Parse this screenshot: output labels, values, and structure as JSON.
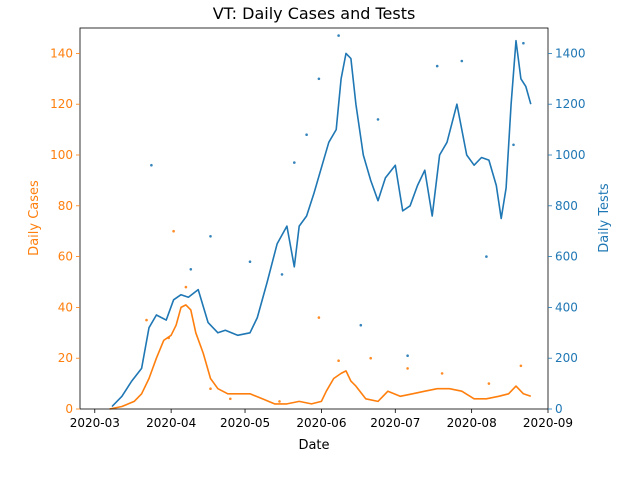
{
  "chart_data": {
    "type": "line",
    "title": "VT: Daily Cases and Tests",
    "xlabel": "Date",
    "ylabel_left": "Daily Cases",
    "ylabel_right": "Daily Tests",
    "xlim": [
      "2020-02-24",
      "2020-09-01"
    ],
    "ylim_left": [
      0,
      150
    ],
    "ylim_right": [
      0,
      1500
    ],
    "x_ticks": [
      "2020-03",
      "2020-04",
      "2020-05",
      "2020-06",
      "2020-07",
      "2020-08",
      "2020-09"
    ],
    "y_ticks_left": [
      0,
      20,
      40,
      60,
      80,
      100,
      120,
      140
    ],
    "y_ticks_right": [
      0,
      200,
      400,
      600,
      800,
      1000,
      1200,
      1400
    ],
    "colors": {
      "cases": "#ff7f0e",
      "tests": "#1f77b4"
    },
    "series": [
      {
        "axis": "left",
        "style": "line",
        "x": [
          "2020-03-07",
          "2020-03-12",
          "2020-03-17",
          "2020-03-20",
          "2020-03-23",
          "2020-03-26",
          "2020-03-29",
          "2020-04-01",
          "2020-04-03",
          "2020-04-05",
          "2020-04-07",
          "2020-04-09",
          "2020-04-11",
          "2020-04-14",
          "2020-04-17",
          "2020-04-20",
          "2020-04-24",
          "2020-04-28",
          "2020-05-03",
          "2020-05-08",
          "2020-05-13",
          "2020-05-18",
          "2020-05-23",
          "2020-05-28",
          "2020-06-01",
          "2020-06-03",
          "2020-06-06",
          "2020-06-09",
          "2020-06-11",
          "2020-06-13",
          "2020-06-15",
          "2020-06-19",
          "2020-06-24",
          "2020-06-28",
          "2020-07-03",
          "2020-07-08",
          "2020-07-13",
          "2020-07-18",
          "2020-07-23",
          "2020-07-28",
          "2020-08-02",
          "2020-08-07",
          "2020-08-12",
          "2020-08-16",
          "2020-08-19",
          "2020-08-22",
          "2020-08-25"
        ],
        "values": [
          0,
          1,
          3,
          6,
          12,
          20,
          27,
          29,
          33,
          40,
          41,
          39,
          30,
          22,
          12,
          8,
          6,
          6,
          6,
          4,
          2,
          2,
          3,
          2,
          3,
          7,
          12,
          14,
          15,
          11,
          9,
          4,
          3,
          7,
          5,
          6,
          7,
          8,
          8,
          7,
          4,
          4,
          5,
          6,
          9,
          6,
          5
        ]
      },
      {
        "axis": "right",
        "style": "line",
        "x": [
          "2020-03-08",
          "2020-03-12",
          "2020-03-16",
          "2020-03-20",
          "2020-03-23",
          "2020-03-26",
          "2020-03-30",
          "2020-04-02",
          "2020-04-05",
          "2020-04-08",
          "2020-04-12",
          "2020-04-16",
          "2020-04-20",
          "2020-04-23",
          "2020-04-28",
          "2020-05-03",
          "2020-05-06",
          "2020-05-10",
          "2020-05-14",
          "2020-05-18",
          "2020-05-21",
          "2020-05-23",
          "2020-05-26",
          "2020-05-29",
          "2020-06-01",
          "2020-06-04",
          "2020-06-07",
          "2020-06-09",
          "2020-06-11",
          "2020-06-13",
          "2020-06-15",
          "2020-06-18",
          "2020-06-21",
          "2020-06-24",
          "2020-06-27",
          "2020-07-01",
          "2020-07-04",
          "2020-07-07",
          "2020-07-10",
          "2020-07-13",
          "2020-07-16",
          "2020-07-19",
          "2020-07-22",
          "2020-07-26",
          "2020-07-30",
          "2020-08-02",
          "2020-08-05",
          "2020-08-08",
          "2020-08-11",
          "2020-08-13",
          "2020-08-15",
          "2020-08-17",
          "2020-08-19",
          "2020-08-21",
          "2020-08-23",
          "2020-08-25"
        ],
        "values": [
          10,
          50,
          110,
          160,
          320,
          370,
          350,
          430,
          450,
          440,
          470,
          340,
          300,
          310,
          290,
          300,
          360,
          500,
          650,
          720,
          560,
          720,
          760,
          850,
          950,
          1050,
          1100,
          1300,
          1400,
          1380,
          1200,
          1000,
          900,
          820,
          910,
          960,
          780,
          800,
          880,
          940,
          760,
          1000,
          1050,
          1200,
          1000,
          960,
          990,
          980,
          880,
          750,
          870,
          1200,
          1450,
          1300,
          1270,
          1200
        ]
      },
      {
        "axis": "left",
        "style": "scatter",
        "x": [
          "2020-03-22",
          "2020-03-31",
          "2020-04-02",
          "2020-04-07",
          "2020-04-17",
          "2020-04-25",
          "2020-05-15",
          "2020-05-31",
          "2020-06-08",
          "2020-06-21",
          "2020-07-06",
          "2020-07-20",
          "2020-08-08",
          "2020-08-21"
        ],
        "values": [
          35,
          28,
          70,
          48,
          8,
          4,
          3,
          36,
          19,
          20,
          16,
          14,
          10,
          17
        ]
      },
      {
        "axis": "right",
        "style": "scatter",
        "x": [
          "2020-03-24",
          "2020-04-09",
          "2020-04-17",
          "2020-05-03",
          "2020-05-16",
          "2020-05-21",
          "2020-05-26",
          "2020-05-31",
          "2020-06-08",
          "2020-06-17",
          "2020-06-24",
          "2020-07-06",
          "2020-07-18",
          "2020-07-28",
          "2020-08-07",
          "2020-08-18",
          "2020-08-22"
        ],
        "values": [
          960,
          550,
          680,
          580,
          530,
          970,
          1080,
          1300,
          1470,
          330,
          1140,
          210,
          1350,
          1370,
          600,
          1040,
          1440
        ]
      }
    ]
  }
}
